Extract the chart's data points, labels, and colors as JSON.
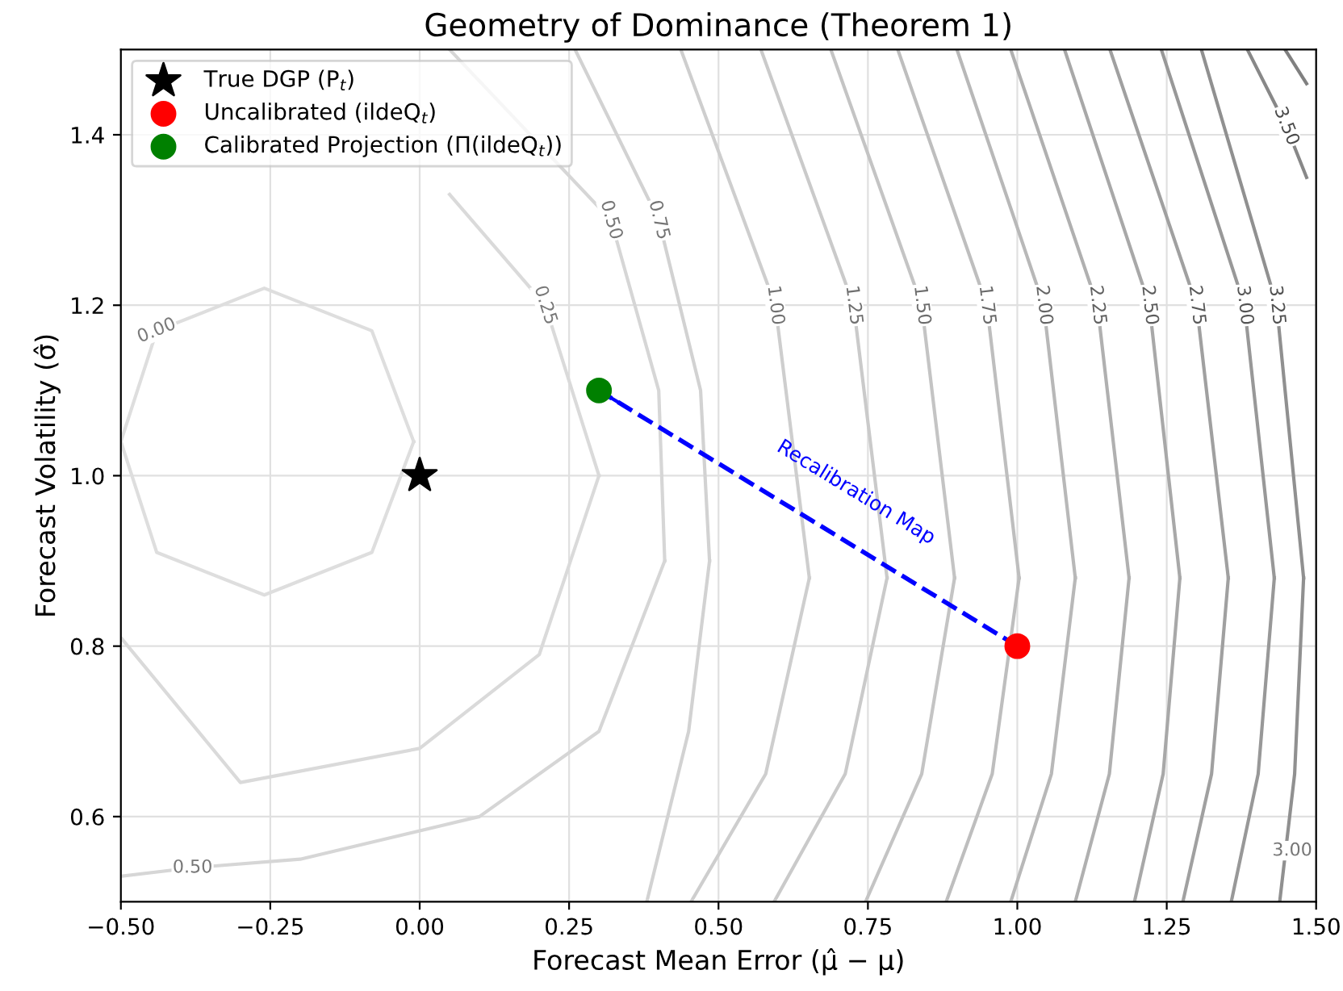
{
  "chart_data": {
    "type": "scatter",
    "title": "Geometry of Dominance (Theorem 1)",
    "xlabel": "Forecast Mean Error (μ̂ − μ)",
    "ylabel": "Forecast Volatility (σ̂)",
    "xlim": [
      -0.5,
      1.5
    ],
    "ylim": [
      0.5,
      1.5
    ],
    "xticks": [
      {
        "value": -0.5,
        "label": "−0.50"
      },
      {
        "value": -0.25,
        "label": "−0.25"
      },
      {
        "value": 0,
        "label": "0.00"
      },
      {
        "value": 0.25,
        "label": "0.25"
      },
      {
        "value": 0.5,
        "label": "0.50"
      },
      {
        "value": 0.75,
        "label": "0.75"
      },
      {
        "value": 1.0,
        "label": "1.00"
      },
      {
        "value": 1.25,
        "label": "1.25"
      },
      {
        "value": 1.5,
        "label": "1.50"
      }
    ],
    "yticks": [
      {
        "value": 0.6,
        "label": "0.6"
      },
      {
        "value": 0.8,
        "label": "0.8"
      },
      {
        "value": 1.0,
        "label": "1.0"
      },
      {
        "value": 1.2,
        "label": "1.2"
      },
      {
        "value": 1.4,
        "label": "1.4"
      }
    ],
    "grid": true,
    "legend": "top left",
    "annotations": [
      {
        "text": "0.50",
        "x": -0.38,
        "y": 0.54
      },
      {
        "text": "3.00",
        "x": 1.46,
        "y": 0.56
      }
    ],
    "series": [
      {
        "name": "0.00",
        "type": "line",
        "color": "#dedede",
        "x": [
          -0.5,
          -0.44,
          -0.26,
          -0.08,
          -0.01
        ],
        "values": [
          1.04,
          1.17,
          1.22,
          1.17,
          1.04
        ]
      },
      {
        "type": "line",
        "color": "#dedede",
        "x": [
          -0.5,
          -0.44,
          -0.26,
          -0.08,
          -0.01
        ],
        "values": [
          1.04,
          0.91,
          0.86,
          0.91,
          1.04
        ]
      },
      {
        "name": "0.25",
        "type": "line",
        "color": "#dadada",
        "x": [
          0.05,
          0.21,
          0.3
        ],
        "values": [
          1.33,
          1.2,
          1.0
        ]
      },
      {
        "type": "line",
        "color": "#dadada",
        "x": [
          -0.5,
          -0.3,
          0.0,
          0.2,
          0.3
        ],
        "values": [
          0.81,
          0.64,
          0.68,
          0.79,
          1.0
        ]
      },
      {
        "name": "0.50",
        "type": "line",
        "color": "#d6d6d6",
        "x": [
          0.05,
          0.32,
          0.4,
          0.41
        ],
        "values": [
          1.5,
          1.3,
          1.1,
          0.9
        ]
      },
      {
        "type": "line",
        "color": "#d6d6d6",
        "x": [
          -0.5,
          -0.38,
          -0.2,
          0.1,
          0.3,
          0.41
        ],
        "values": [
          0.53,
          0.54,
          0.55,
          0.6,
          0.7,
          0.9
        ]
      },
      {
        "name": "0.75",
        "type": "line",
        "color": "#d2d2d2",
        "x": [
          0.26,
          0.4,
          0.47,
          0.485
        ],
        "values": [
          1.5,
          1.3,
          1.1,
          0.9
        ]
      },
      {
        "type": "line",
        "color": "#d2d2d2",
        "x": [
          0.38,
          0.45,
          0.485
        ],
        "values": [
          0.5,
          0.7,
          0.9
        ]
      },
      {
        "name": "1.00",
        "type": "line",
        "color": "#cecece",
        "x": [
          0.437,
          0.595,
          0.652
        ],
        "values": [
          1.5,
          1.2,
          0.88
        ]
      },
      {
        "type": "line",
        "color": "#cecece",
        "x": [
          0.454,
          0.579,
          0.652
        ],
        "values": [
          0.5,
          0.65,
          0.88
        ]
      },
      {
        "name": "1.25",
        "type": "line",
        "color": "#cacaca",
        "x": [
          0.571,
          0.726,
          0.782
        ],
        "values": [
          1.5,
          1.2,
          0.88
        ]
      },
      {
        "type": "line",
        "color": "#cacaca",
        "x": [
          0.593,
          0.712,
          0.782
        ],
        "values": [
          0.5,
          0.65,
          0.88
        ]
      },
      {
        "name": "1.50",
        "type": "line",
        "color": "#c4c4c4",
        "x": [
          0.688,
          0.84,
          0.895
        ],
        "values": [
          1.5,
          1.2,
          0.88
        ]
      },
      {
        "type": "line",
        "color": "#c4c4c4",
        "x": [
          0.746,
          0.84,
          0.895
        ],
        "values": [
          0.5,
          0.65,
          0.88
        ]
      },
      {
        "name": "1.75",
        "type": "line",
        "color": "#bebebe",
        "x": [
          0.8,
          0.949,
          1.003
        ],
        "values": [
          1.5,
          1.2,
          0.88
        ]
      },
      {
        "type": "line",
        "color": "#bebebe",
        "x": [
          0.881,
          0.958,
          1.003
        ],
        "values": [
          0.5,
          0.65,
          0.88
        ]
      },
      {
        "name": "2.00",
        "type": "line",
        "color": "#b8b8b8",
        "x": [
          0.899,
          1.044,
          1.097
        ],
        "values": [
          1.5,
          1.2,
          0.88
        ]
      },
      {
        "type": "line",
        "color": "#b8b8b8",
        "x": [
          0.989,
          1.057,
          1.097
        ],
        "values": [
          0.5,
          0.65,
          0.88
        ]
      },
      {
        "name": "2.25",
        "type": "line",
        "color": "#b0b0b0",
        "x": [
          0.989,
          1.134,
          1.187
        ],
        "values": [
          1.5,
          1.2,
          0.88
        ]
      },
      {
        "type": "line",
        "color": "#b0b0b0",
        "x": [
          1.097,
          1.154,
          1.187
        ],
        "values": [
          0.5,
          0.65,
          0.88
        ]
      },
      {
        "name": "2.50",
        "type": "line",
        "color": "#a8a8a8",
        "x": [
          1.079,
          1.221,
          1.272
        ],
        "values": [
          1.5,
          1.2,
          0.88
        ]
      },
      {
        "type": "line",
        "color": "#a8a8a8",
        "x": [
          1.196,
          1.244,
          1.272
        ],
        "values": [
          0.5,
          0.65,
          0.88
        ]
      },
      {
        "name": "2.75",
        "type": "line",
        "color": "#a0a0a0",
        "x": [
          1.155,
          1.3,
          1.353
        ],
        "values": [
          1.5,
          1.2,
          0.88
        ]
      },
      {
        "type": "line",
        "color": "#a0a0a0",
        "x": [
          1.277,
          1.325,
          1.353
        ],
        "values": [
          0.5,
          0.65,
          0.88
        ]
      },
      {
        "name": "3.00",
        "type": "line",
        "color": "#989898",
        "x": [
          1.241,
          1.38,
          1.43
        ],
        "values": [
          1.5,
          1.2,
          0.88
        ]
      },
      {
        "type": "line",
        "color": "#989898",
        "x": [
          1.358,
          1.403,
          1.43
        ],
        "values": [
          0.5,
          0.65,
          0.88
        ]
      },
      {
        "name": "3.25",
        "type": "line",
        "color": "#909090",
        "x": [
          1.308,
          1.434,
          1.479
        ],
        "values": [
          1.5,
          1.2,
          0.88
        ]
      },
      {
        "type": "line",
        "color": "#909090",
        "x": [
          1.439,
          1.464,
          1.479
        ],
        "values": [
          0.5,
          0.65,
          0.88
        ]
      },
      {
        "name": "3.50",
        "type": "line",
        "color": "#888888",
        "x": [
          1.385,
          1.45,
          1.484
        ],
        "values": [
          1.5,
          1.41,
          1.35
        ]
      },
      {
        "type": "line",
        "color": "#808080",
        "x": [
          1.448,
          1.484
        ],
        "values": [
          1.5,
          1.46
        ]
      },
      {
        "name": "Recalibration Map",
        "type": "line",
        "line_style": "dashed",
        "color": "#0000ff",
        "x": [
          1.0,
          0.3
        ],
        "values": [
          0.8,
          1.1
        ]
      },
      {
        "name": "True DGP (P$_{t}$)",
        "marker": "star",
        "color": "#000000",
        "x": [
          0.0
        ],
        "values": [
          1.0
        ]
      },
      {
        "name": "Uncalibrated (ildeQ$_{t}$)",
        "marker": "circle",
        "color": "#ff0000",
        "x": [
          1.0
        ],
        "values": [
          0.8
        ]
      },
      {
        "name": "Calibrated Projection (Π(ildeQ$_{t}$))",
        "marker": "circle",
        "color": "#008000",
        "x": [
          0.3
        ],
        "values": [
          1.1
        ]
      }
    ]
  }
}
